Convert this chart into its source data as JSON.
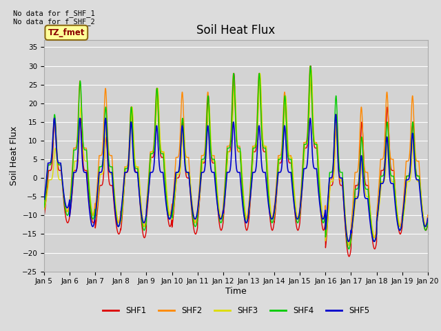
{
  "title": "Soil Heat Flux",
  "ylabel": "Soil Heat Flux",
  "xlabel": "Time",
  "text_upper_left": "No data for f_SHF_1\nNo data for f_SHF_2",
  "tz_label": "TZ_fmet",
  "ylim": [
    -25,
    37
  ],
  "yticks": [
    -25,
    -20,
    -15,
    -10,
    -5,
    0,
    5,
    10,
    15,
    20,
    25,
    30,
    35
  ],
  "start_day": 5,
  "end_day": 20,
  "n_days": 15,
  "bg_color": "#dcdcdc",
  "plot_bg_color": "#d3d3d3",
  "series": {
    "SHF1": {
      "color": "#dd0000",
      "linewidth": 1.0
    },
    "SHF2": {
      "color": "#ff8800",
      "linewidth": 1.0
    },
    "SHF3": {
      "color": "#dddd00",
      "linewidth": 1.0
    },
    "SHF4": {
      "color": "#00cc00",
      "linewidth": 1.0
    },
    "SHF5": {
      "color": "#0000cc",
      "linewidth": 1.2
    }
  },
  "daily_peaks": {
    "SHF1": [
      16,
      16,
      11,
      19,
      24,
      15,
      22,
      28,
      28,
      22,
      30,
      17,
      15,
      19,
      15
    ],
    "SHF2": [
      16,
      26,
      24,
      19,
      24,
      23,
      23,
      28,
      28,
      23,
      30,
      17,
      19,
      23,
      22
    ],
    "SHF3": [
      8,
      19,
      14,
      19,
      24,
      14,
      20,
      25,
      28,
      22,
      29,
      16,
      6,
      11,
      11
    ],
    "SHF4": [
      17,
      26,
      19,
      19,
      24,
      16,
      22,
      28,
      28,
      22,
      30,
      22,
      11,
      15,
      15
    ],
    "SHF5": [
      16,
      16,
      16,
      15,
      14,
      14,
      14,
      15,
      14,
      14,
      16,
      17,
      6,
      11,
      12
    ]
  },
  "daily_troughs": {
    "SHF1": [
      -12,
      -12,
      -15,
      -16,
      -13,
      -15,
      -14,
      -14,
      -14,
      -14,
      -14,
      -21,
      -19,
      -15,
      -14
    ],
    "SHF2": [
      -9,
      -10,
      -12,
      -13,
      -10,
      -12,
      -11,
      -11,
      -11,
      -11,
      -11,
      -18,
      -16,
      -13,
      -13
    ],
    "SHF3": [
      -9,
      -10,
      -12,
      -13,
      -10,
      -12,
      -11,
      -11,
      -11,
      -11,
      -11,
      -18,
      -16,
      -13,
      -13
    ],
    "SHF4": [
      -10,
      -11,
      -13,
      -14,
      -11,
      -13,
      -12,
      -12,
      -12,
      -12,
      -12,
      -19,
      -17,
      -14,
      -14
    ],
    "SHF5": [
      -8,
      -13,
      -13,
      -12,
      -11,
      -11,
      -11,
      -12,
      -11,
      -11,
      -11,
      -17,
      -17,
      -14,
      -13
    ]
  },
  "peak_phase": [
    0.42,
    0.4,
    0.44,
    0.41,
    0.4
  ],
  "sharpness": 8.0
}
